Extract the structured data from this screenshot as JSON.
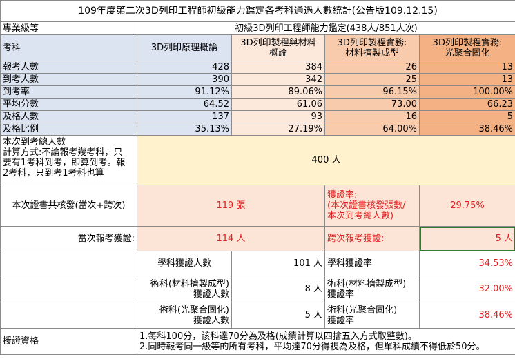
{
  "title": "109年度第二次3D列印工程師初級能力鑑定各考科通過人數統計(公告版109.12.15)",
  "level_label": "專業級等",
  "level_value": "初級3D列印工程師能力鑑定(438人/851人次)",
  "subject_label": "考科",
  "subjects": [
    "3D列印原理概論",
    "3D列印製程與材料概論",
    "3D列印製程實務:材料擠製成型",
    "3D列印製程實務:光聚合固化"
  ],
  "subjects_line1": [
    "3D列印原理概論",
    "3D列印製程與材料",
    "3D列印製程實務:",
    "3D列印製程實務:"
  ],
  "subjects_line2": [
    "",
    "概論",
    "材料擠製成型",
    "光聚合固化"
  ],
  "rows": [
    {
      "label": "報考人數",
      "values": [
        "428",
        "384",
        "26",
        "13"
      ]
    },
    {
      "label": "到考人數",
      "values": [
        "390",
        "342",
        "25",
        "13"
      ]
    },
    {
      "label": "到考率",
      "values": [
        "91.12%",
        "89.06%",
        "96.15%",
        "100.00%"
      ]
    },
    {
      "label": "平均分數",
      "values": [
        "64.52",
        "61.06",
        "73.00",
        "66.23"
      ]
    },
    {
      "label": "及格人數",
      "values": [
        "137",
        "93",
        "16",
        "5"
      ]
    },
    {
      "label": "及格比例",
      "values": [
        "35.13%",
        "27.19%",
        "64.00%",
        "38.46%"
      ]
    }
  ],
  "attendance": {
    "label_lines": [
      "本次到考總人數",
      "計算方式:不論報考幾考科，只",
      "要有1考科到考，即算到考。報",
      "2考科，只到考1考科也算"
    ],
    "value": "400 人"
  },
  "certificates": {
    "label": "本次證書共核發(當次+跨次)",
    "value": "119 張",
    "rate_label_lines": [
      "獲證率:",
      "(本次證書核發張數/",
      "本次到考總人數)"
    ],
    "rate_value": "29.75%"
  },
  "current": {
    "label": "當次報考獲證:",
    "value": "114 人",
    "cross_label": "跨次報考獲證:",
    "cross_value": "5 人"
  },
  "details": [
    {
      "label_lines": [
        "學科獲證人數"
      ],
      "value": "101 人",
      "rate_label_lines": [
        "學科獲證率"
      ],
      "rate": "34.53%"
    },
    {
      "label_lines": [
        "術科(材料擠製成型)",
        "獲證人數"
      ],
      "value": "8 人",
      "rate_label_lines": [
        "術科(材料擠製成型)",
        "獲證率"
      ],
      "rate": "32.00%"
    },
    {
      "label_lines": [
        "術科(光聚合固化)",
        "獲證人數"
      ],
      "value": "5 人",
      "rate_label_lines": [
        "術科(光聚合固化)",
        "獲證率"
      ],
      "rate": "38.46%"
    }
  ],
  "qualification": {
    "label": "授證資格",
    "lines": [
      "1.每科100分，該科達70分為及格(成績計算以四捨五入方式取整數)。",
      "2.同時報考同一級等的所有考科，平均達70分得視為及格，但單科成績不得低於50分。"
    ]
  }
}
